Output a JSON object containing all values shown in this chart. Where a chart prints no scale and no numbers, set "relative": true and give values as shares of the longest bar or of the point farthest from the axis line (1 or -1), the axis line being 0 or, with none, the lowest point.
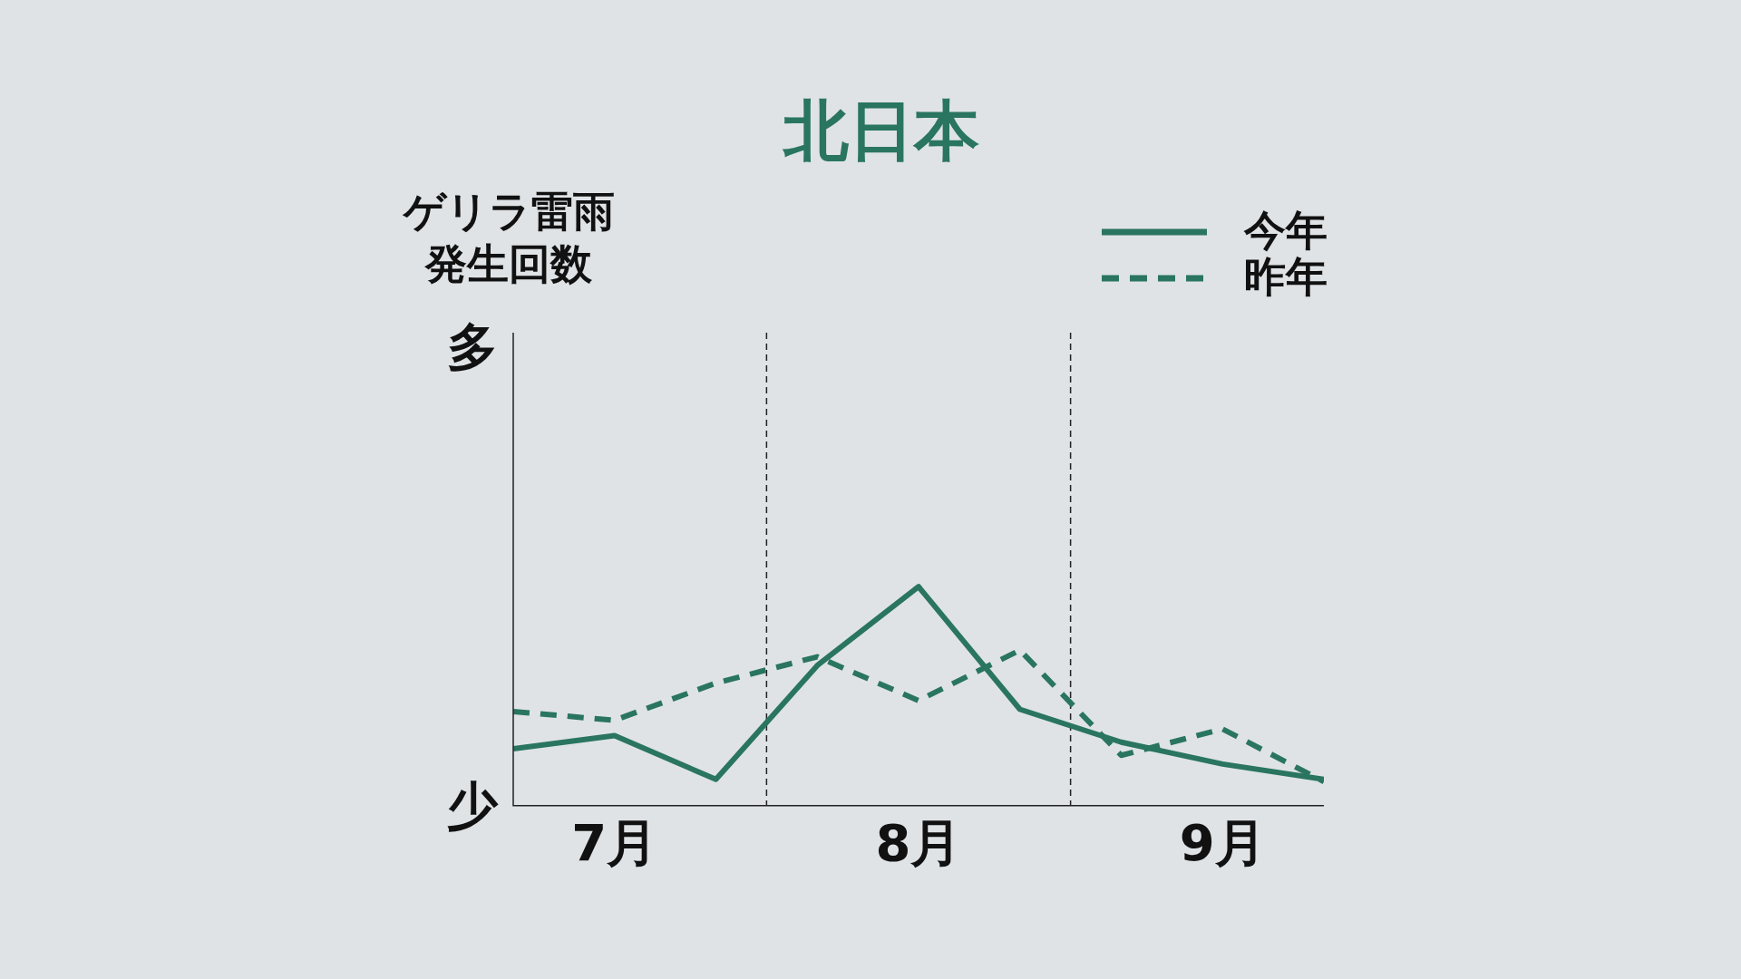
{
  "chart_data": {
    "type": "line",
    "title": "北日本",
    "annotations": [
      "ゲリラ雷雨発生回数",
      "多",
      "少"
    ],
    "relative": true,
    "categories": [
      null,
      "7月",
      null,
      null,
      "8月",
      null,
      null,
      "9月",
      null
    ],
    "tick_labels": "x",
    "grid": false,
    "legend": "top right",
    "marker": "none",
    "series": [
      {
        "name": "今年",
        "color": "#2a7560",
        "line_style": "solid",
        "values": [
          0.26,
          0.32,
          0.12,
          0.64,
          1,
          0.44,
          0.29,
          0.19,
          0.12
        ]
      },
      {
        "name": "昨年",
        "color": "#2a7560",
        "line_style": "dashed",
        "values": [
          0.43,
          0.39,
          0.56,
          0.68,
          0.48,
          0.71,
          0.23,
          0.35,
          0.11
        ]
      }
    ]
  }
}
